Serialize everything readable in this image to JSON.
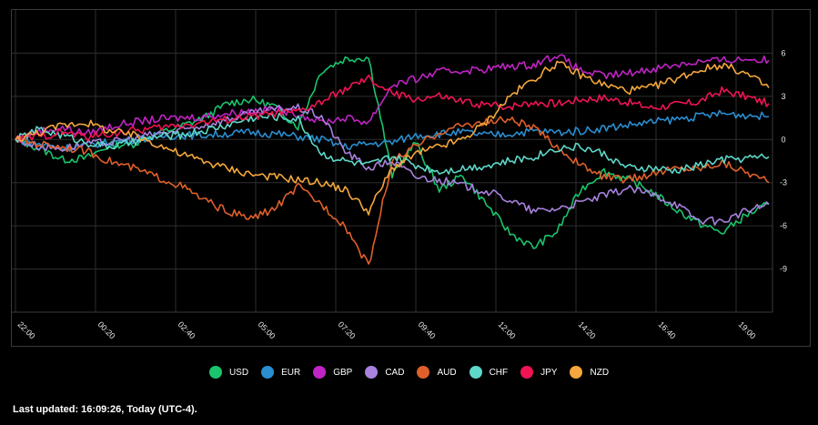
{
  "chart_data": {
    "type": "line",
    "x_ticks": [
      "22:00",
      "00:20",
      "02:40",
      "05:00",
      "07:20",
      "09:40",
      "12:00",
      "14:20",
      "16:40",
      "19:00"
    ],
    "y_ticks": [
      6,
      3,
      0,
      -3,
      -6,
      -9
    ],
    "ylim": [
      -12,
      9
    ],
    "grid": true,
    "legend_placement": "bottom-center",
    "series": [
      {
        "name": "USD",
        "color": "#19c46c",
        "values": [
          0,
          -0.6,
          -1.4,
          -1.3,
          -0.4,
          -0.3,
          0.4,
          0.9,
          1.5,
          2.5,
          2.8,
          2.3,
          0.9,
          4.8,
          5.6,
          5.7,
          -2.5,
          -0.2,
          -3.5,
          -2.5,
          -4.5,
          -6.5,
          -7.5,
          -6.4,
          -3.5,
          -2.2,
          -2.8,
          -3.6,
          -4.8,
          -5.8,
          -6.5,
          -5.3,
          -4.5
        ]
      },
      {
        "name": "EUR",
        "color": "#2a8ed0",
        "values": [
          0,
          -0.3,
          -0.6,
          -0.4,
          -0.2,
          0,
          0.2,
          0.3,
          0.3,
          0.4,
          0.5,
          0.4,
          0.2,
          0,
          -0.5,
          -0.3,
          -0.2,
          0.3,
          0.4,
          0.5,
          0.3,
          0.4,
          0.6,
          0.5,
          0.6,
          0.8,
          1.0,
          1.2,
          1.4,
          1.6,
          1.8,
          1.7,
          1.6
        ]
      },
      {
        "name": "GBP",
        "color": "#c024c4",
        "values": [
          0,
          0.6,
          0.8,
          0.4,
          0.9,
          1.2,
          1.4,
          1.5,
          1.6,
          1.8,
          2.0,
          2.1,
          1.8,
          1.2,
          1.5,
          1.2,
          3.8,
          4.2,
          4.7,
          4.8,
          4.9,
          5.1,
          5.2,
          5.9,
          4.8,
          4.4,
          4.6,
          4.9,
          5.2,
          5.4,
          5.5,
          5.6,
          5.5
        ]
      },
      {
        "name": "CAD",
        "color": "#a882de",
        "values": [
          0,
          -0.5,
          -0.6,
          -0.3,
          -0.2,
          0.1,
          0.4,
          0.6,
          1.0,
          1.4,
          1.8,
          2.1,
          2.2,
          1.6,
          -0.8,
          -2.0,
          -1.5,
          -2.6,
          -2.8,
          -3.2,
          -3.6,
          -4.2,
          -5.0,
          -4.8,
          -4.4,
          -3.9,
          -3.4,
          -3.8,
          -4.4,
          -5.6,
          -5.7,
          -5.0,
          -4.5
        ]
      },
      {
        "name": "AUD",
        "color": "#e0602a",
        "values": [
          0,
          -0.3,
          -0.5,
          -0.8,
          -1.5,
          -2.0,
          -2.6,
          -3.2,
          -4.2,
          -5.0,
          -5.5,
          -4.8,
          -3.3,
          -4.5,
          -6.0,
          -8.8,
          -1.5,
          -0.5,
          0.5,
          1.0,
          1.2,
          1.4,
          0.8,
          -0.5,
          -1.8,
          -2.6,
          -2.8,
          -2.4,
          -2.0,
          -2.0,
          -1.6,
          -2.2,
          -3.0
        ]
      },
      {
        "name": "CHF",
        "color": "#5ed8c8",
        "values": [
          0,
          0.7,
          0.3,
          -0.2,
          -0.5,
          -0.2,
          0.2,
          0.3,
          0.6,
          1.0,
          1.5,
          1.6,
          1.4,
          -1.0,
          -1.5,
          -1.8,
          -1.2,
          -1.8,
          -2.2,
          -2.0,
          -1.8,
          -1.5,
          -1.2,
          -0.6,
          -0.5,
          -1.0,
          -2.0,
          -2.0,
          -2.2,
          -1.8,
          -1.4,
          -1.3,
          -1.2
        ]
      },
      {
        "name": "JPY",
        "color": "#f01454",
        "values": [
          0,
          0.2,
          0.5,
          0.2,
          0.4,
          0.6,
          0.8,
          1.0,
          1.2,
          1.4,
          1.6,
          1.8,
          1.9,
          2.6,
          3.5,
          4.2,
          3.2,
          2.8,
          3.0,
          2.6,
          2.4,
          2.3,
          2.6,
          2.5,
          2.8,
          2.9,
          2.6,
          2.2,
          2.4,
          2.6,
          3.4,
          3.0,
          2.5
        ]
      },
      {
        "name": "NZD",
        "color": "#f4a73c",
        "values": [
          0,
          0.5,
          1.0,
          1.2,
          0.6,
          0.3,
          -0.3,
          -1.0,
          -1.5,
          -2.0,
          -2.4,
          -2.6,
          -2.8,
          -3.0,
          -3.5,
          -5.0,
          -2.0,
          -1.0,
          -0.5,
          0.0,
          1.2,
          3.0,
          4.2,
          5.3,
          4.5,
          3.8,
          3.4,
          3.6,
          4.2,
          4.8,
          5.2,
          4.6,
          3.6
        ]
      }
    ]
  },
  "footer": {
    "last_updated": "Last updated: 16:09:26, Today (UTC-4)."
  }
}
